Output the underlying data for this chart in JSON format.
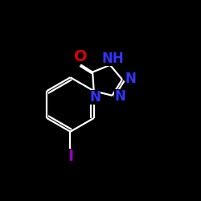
{
  "background_color": "#000000",
  "bond_color": "#ffffff",
  "atom_colors": {
    "O": "#dd0000",
    "N": "#3333ff",
    "I": "#9900bb",
    "C": "#ffffff"
  },
  "figsize": [
    2.5,
    2.5
  ],
  "dpi": 100,
  "lw": 1.6
}
